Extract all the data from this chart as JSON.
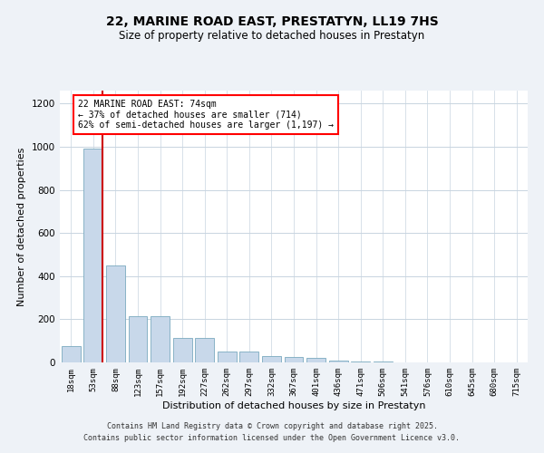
{
  "title_line1": "22, MARINE ROAD EAST, PRESTATYN, LL19 7HS",
  "title_line2": "Size of property relative to detached houses in Prestatyn",
  "xlabel": "Distribution of detached houses by size in Prestatyn",
  "ylabel": "Number of detached properties",
  "annotation_title": "22 MARINE ROAD EAST: 74sqm",
  "annotation_line2": "← 37% of detached houses are smaller (714)",
  "annotation_line3": "62% of semi-detached houses are larger (1,197) →",
  "bar_color": "#c8d8ea",
  "bar_edge_color": "#7aaabf",
  "marker_color": "#cc0000",
  "marker_bar_index": 1,
  "categories": [
    "18sqm",
    "53sqm",
    "88sqm",
    "123sqm",
    "157sqm",
    "192sqm",
    "227sqm",
    "262sqm",
    "297sqm",
    "332sqm",
    "367sqm",
    "401sqm",
    "436sqm",
    "471sqm",
    "506sqm",
    "541sqm",
    "576sqm",
    "610sqm",
    "645sqm",
    "680sqm",
    "715sqm"
  ],
  "values": [
    75,
    990,
    450,
    215,
    215,
    115,
    115,
    50,
    50,
    30,
    25,
    20,
    8,
    5,
    3,
    2,
    2,
    1,
    1,
    1,
    1
  ],
  "ylim": [
    0,
    1260
  ],
  "yticks": [
    0,
    200,
    400,
    600,
    800,
    1000,
    1200
  ],
  "footer_line1": "Contains HM Land Registry data © Crown copyright and database right 2025.",
  "footer_line2": "Contains public sector information licensed under the Open Government Licence v3.0.",
  "bg_color": "#eef2f7",
  "plot_bg_color": "#ffffff",
  "grid_color": "#c8d4e0"
}
